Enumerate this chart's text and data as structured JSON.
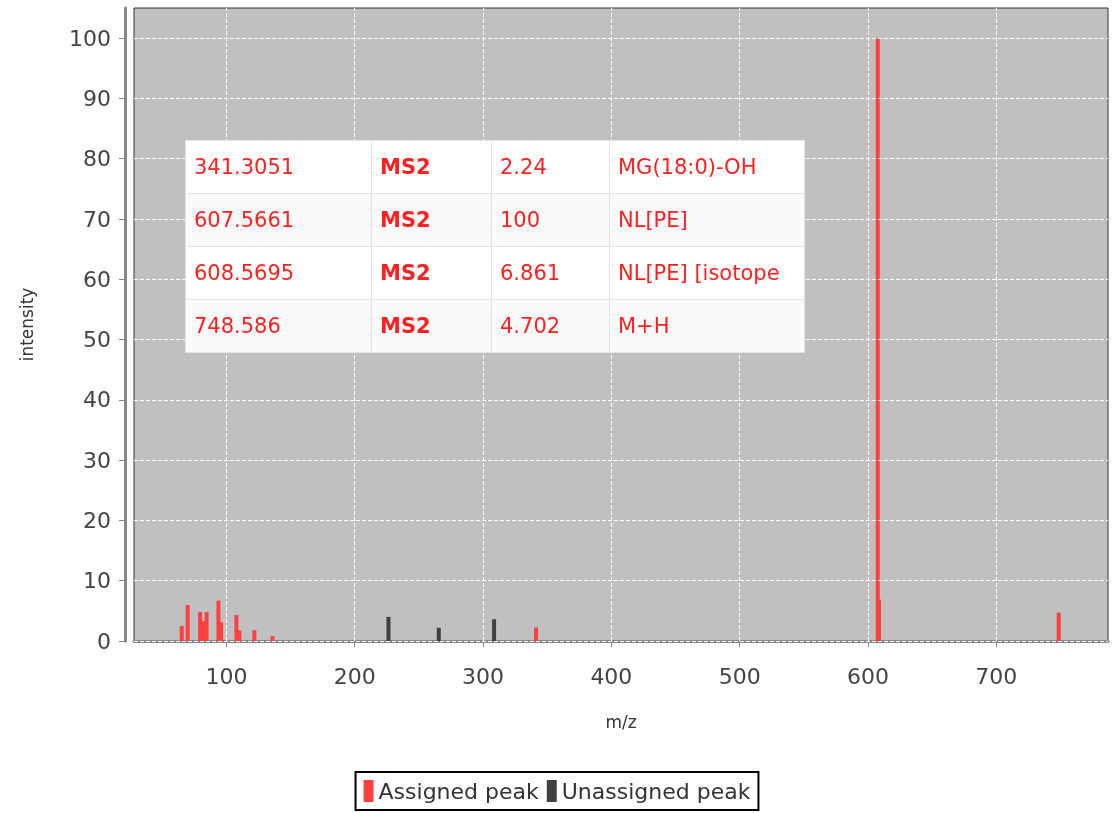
{
  "chart_data": {
    "type": "bar",
    "xlabel": "m/z",
    "ylabel": "intensity",
    "xlim": [
      28,
      787
    ],
    "xticks": [
      100,
      200,
      300,
      400,
      500,
      600,
      700
    ],
    "ylim": [
      0,
      105
    ],
    "yticks": [
      0,
      10,
      20,
      30,
      40,
      50,
      60,
      70,
      80,
      90,
      100
    ],
    "grid": true,
    "legend": "bottom",
    "series": [
      {
        "name": "Assigned peak",
        "color": "#ff4040",
        "x": [
          65.2,
          69.8,
          79.5,
          82,
          84.6,
          93.8,
          95.9,
          107.8,
          110.1,
          121.8,
          135.9,
          341.3051,
          607.5661,
          608.5695,
          748.586
        ],
        "values": [
          2.5,
          6.0,
          4.8,
          3.3,
          4.8,
          6.7,
          3.1,
          4.3,
          1.8,
          1.8,
          0.8,
          2.24,
          100,
          6.861,
          4.702
        ]
      },
      {
        "name": "Unassigned peak",
        "color": "#404040",
        "x": [
          226.3,
          265.5,
          308.6
        ],
        "values": [
          4.0,
          2.2,
          3.6
        ]
      }
    ],
    "annotations": [
      "341.3051",
      "MS2",
      "2.24",
      "MG(18:0)-OH",
      "607.5661",
      "MS2",
      "100",
      "NL[PE]",
      "608.5695",
      "MS2",
      "6.861",
      "NL[PE] [isotope",
      "748.586",
      "MS2",
      "4.702",
      "M+H"
    ]
  }
}
